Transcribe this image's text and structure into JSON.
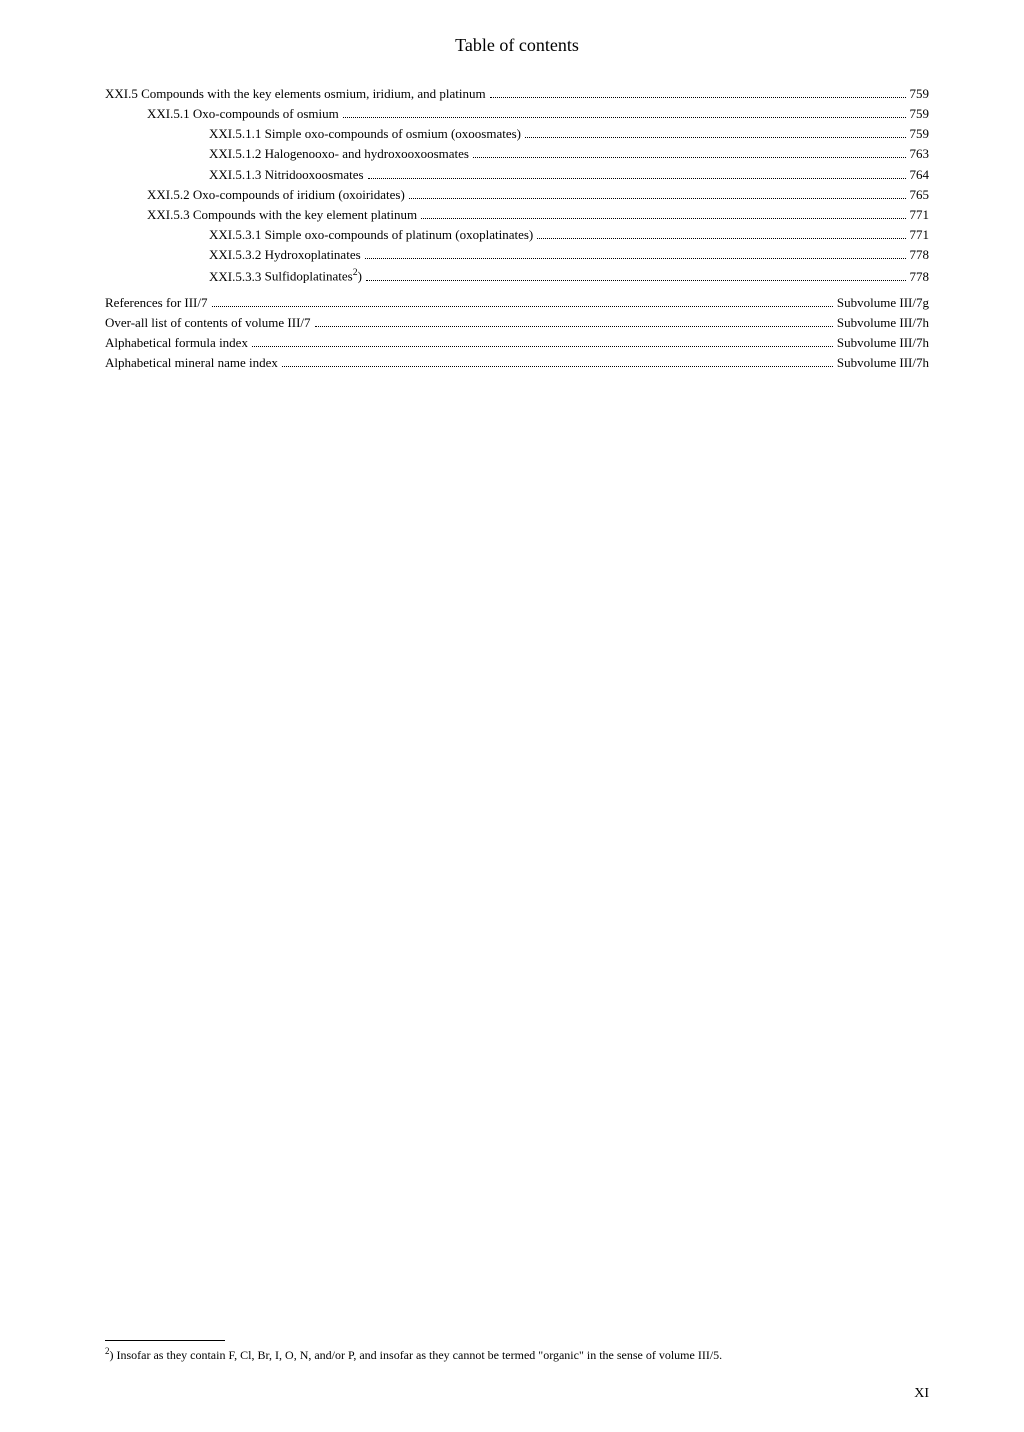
{
  "title": "Table of contents",
  "entries": [
    {
      "indent": 0,
      "num": "XXI.5",
      "label": "Compounds with the key elements osmium, iridium, and platinum",
      "page": "759"
    },
    {
      "indent": 1,
      "num": "XXI.5.1",
      "label": "Oxo-compounds of osmium",
      "page": "759"
    },
    {
      "indent": 2,
      "num": "XXI.5.1.1",
      "label": "Simple oxo-compounds of osmium (oxoosmates)",
      "page": "759"
    },
    {
      "indent": 2,
      "num": "XXI.5.1.2",
      "label": "Halogenooxo- and hydroxooxoosmates",
      "page": "763"
    },
    {
      "indent": 2,
      "num": "XXI.5.1.3",
      "label": "Nitridooxoosmates",
      "page": "764"
    },
    {
      "indent": 1,
      "num": "XXI.5.2",
      "label": "Oxo-compounds of iridium (oxoiridates)",
      "page": "765"
    },
    {
      "indent": 1,
      "num": "XXI.5.3",
      "label": "Compounds with the key element platinum",
      "page": "771"
    },
    {
      "indent": 2,
      "num": "XXI.5.3.1",
      "label": "Simple oxo-compounds of platinum (oxoplatinates)",
      "page": "771"
    },
    {
      "indent": 2,
      "num": "XXI.5.3.2",
      "label": "Hydroxoplatinates",
      "page": "778"
    },
    {
      "indent": 2,
      "num": "XXI.5.3.3",
      "label": "Sulfidoplatinates",
      "sup": "2",
      "suffix": ")",
      "page": "778"
    }
  ],
  "refs": [
    {
      "label": "References for III/7",
      "page": "Subvolume III/7g"
    },
    {
      "label": "Over-all list of contents of volume III/7",
      "page": "Subvolume III/7h"
    },
    {
      "label": "Alphabetical formula index",
      "page": "Subvolume III/7h"
    },
    {
      "label": "Alphabetical mineral name index",
      "page": "Subvolume III/7h"
    }
  ],
  "footnote": {
    "marker": "2",
    "suffix": ")",
    "text": " Insofar as they contain F, Cl, Br, I, O, N, and/or P, and insofar as they cannot be termed \"organic\" in the sense of volume III/5."
  },
  "pageNumber": "XI"
}
